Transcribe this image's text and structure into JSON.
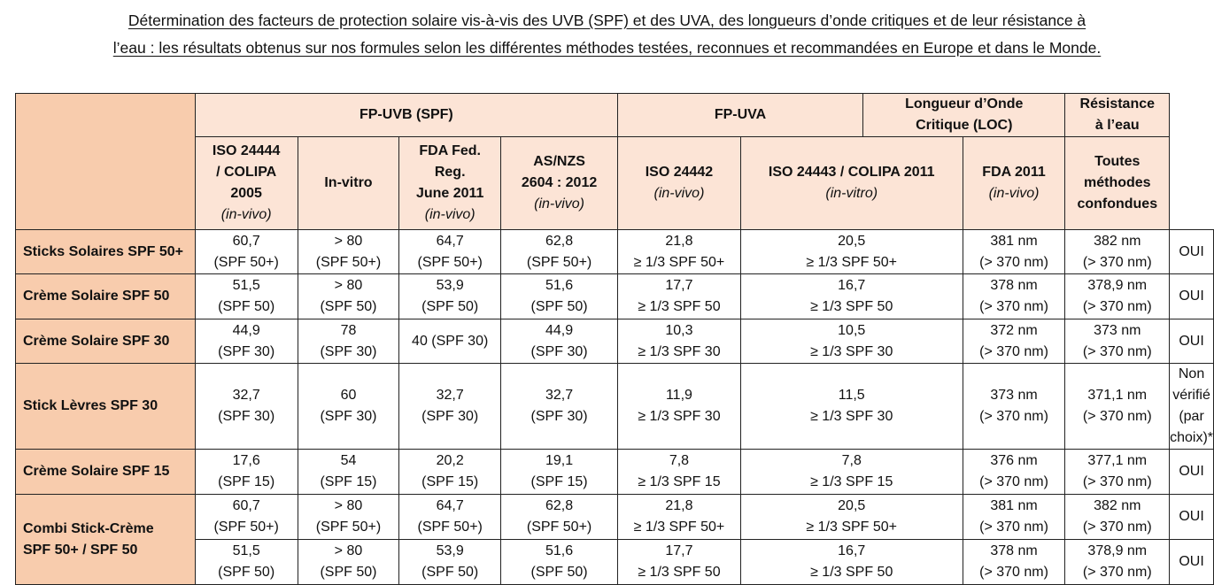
{
  "title": {
    "line1": "Détermination des facteurs de protection solaire vis-à-vis des UVB (SPF) et des UVA, des longueurs d’onde critiques et de leur résistance à",
    "line2": "l’eau : les résultats obtenus sur nos formules selon les différentes méthodes testées, reconnues et recommandées en Europe et dans le Monde."
  },
  "groups": {
    "uvb": "FP-UVB (SPF)",
    "uva": "FP-UVA",
    "loc": [
      "Longueur d’Onde",
      "Critique (LOC)"
    ],
    "water": [
      "Résistance",
      "à l’eau"
    ]
  },
  "methods": {
    "iso24444": {
      "lines": [
        "ISO 24444",
        "/ COLIPA",
        "2005"
      ],
      "note": "(in-vivo)"
    },
    "invitro": {
      "lines": [
        "In-vitro"
      ],
      "note": ""
    },
    "fda": {
      "lines": [
        "FDA Fed.",
        "Reg.",
        "June 2011"
      ],
      "note": "(in-vivo)"
    },
    "asnzs": {
      "lines": [
        "AS/NZS",
        "2604 : 2012"
      ],
      "note": "(in-vivo)"
    },
    "iso24442": {
      "lines": [
        "ISO 24442"
      ],
      "note": "(in-vivo)"
    },
    "iso24443": {
      "lines": [
        "ISO 24443 / COLIPA 2011"
      ],
      "note": "(in-vitro)"
    },
    "fda2011": {
      "lines": [
        "FDA 2011"
      ],
      "note": "(in-vivo)"
    },
    "all": {
      "lines": [
        "Toutes",
        "méthodes",
        "confondues"
      ],
      "note": ""
    }
  },
  "rows": [
    {
      "label": [
        "Sticks Solaires SPF 50+"
      ],
      "cells": [
        [
          "60,7",
          "(SPF 50+)"
        ],
        [
          "> 80",
          "(SPF 50+)"
        ],
        [
          "64,7",
          "(SPF 50+)"
        ],
        [
          "62,8",
          "(SPF 50+)"
        ],
        [
          "21,8",
          "≥ 1/3 SPF 50+"
        ],
        [
          "20,5",
          "≥ 1/3 SPF 50+"
        ],
        [
          "381 nm",
          "(> 370 nm)"
        ],
        [
          "382 nm",
          "(> 370 nm)"
        ],
        [
          "OUI"
        ]
      ]
    },
    {
      "label": [
        "Crème Solaire SPF 50"
      ],
      "cells": [
        [
          "51,5",
          "(SPF 50)"
        ],
        [
          "> 80",
          "(SPF 50)"
        ],
        [
          "53,9",
          "(SPF 50)"
        ],
        [
          "51,6",
          "(SPF 50)"
        ],
        [
          "17,7",
          "≥ 1/3 SPF 50"
        ],
        [
          "16,7",
          "≥ 1/3 SPF 50"
        ],
        [
          "378 nm",
          "(> 370 nm)"
        ],
        [
          "378,9 nm",
          "(> 370 nm)"
        ],
        [
          "OUI"
        ]
      ]
    },
    {
      "label": [
        "Crème Solaire SPF 30"
      ],
      "cells": [
        [
          "44,9",
          "(SPF 30)"
        ],
        [
          "78",
          "(SPF 30)"
        ],
        [
          "40 (SPF 30)"
        ],
        [
          "44,9",
          "(SPF 30)"
        ],
        [
          "10,3",
          "≥ 1/3 SPF 30"
        ],
        [
          "10,5",
          "≥ 1/3 SPF 30"
        ],
        [
          "372 nm",
          "(> 370 nm)"
        ],
        [
          "373 nm",
          "(> 370 nm)"
        ],
        [
          "OUI"
        ]
      ]
    },
    {
      "label": [
        "Stick Lèvres SPF 30"
      ],
      "cells": [
        [
          "32,7",
          "(SPF 30)"
        ],
        [
          "60",
          "(SPF 30)"
        ],
        [
          "32,7",
          "(SPF 30)"
        ],
        [
          "32,7",
          "(SPF 30)"
        ],
        [
          "11,9",
          "≥ 1/3 SPF 30"
        ],
        [
          "11,5",
          "≥ 1/3 SPF 30"
        ],
        [
          "373 nm",
          "(> 370 nm)"
        ],
        [
          "371,1 nm",
          "(> 370 nm)"
        ],
        [
          "Non vérifié",
          "(par choix)*"
        ]
      ]
    },
    {
      "label": [
        "Crème Solaire SPF 15"
      ],
      "cells": [
        [
          "17,6",
          "(SPF 15)"
        ],
        [
          "54",
          "(SPF 15)"
        ],
        [
          "20,2",
          "(SPF 15)"
        ],
        [
          "19,1",
          "(SPF 15)"
        ],
        [
          "7,8",
          "≥ 1/3 SPF 15"
        ],
        [
          "7,8",
          "≥ 1/3 SPF 15"
        ],
        [
          "376 nm",
          "(> 370 nm)"
        ],
        [
          "377,1 nm",
          "(> 370 nm)"
        ],
        [
          "OUI"
        ]
      ]
    },
    {
      "label": [
        "Combi Stick-Crème",
        "SPF 50+ / SPF 50"
      ],
      "cells": [
        [
          "60,7",
          "(SPF 50+)"
        ],
        [
          "> 80",
          "(SPF 50+)"
        ],
        [
          "64,7",
          "(SPF 50+)"
        ],
        [
          "62,8",
          "(SPF 50+)"
        ],
        [
          "21,8",
          "≥ 1/3 SPF 50+"
        ],
        [
          "20,5",
          "≥ 1/3 SPF 50+"
        ],
        [
          "381 nm",
          "(> 370 nm)"
        ],
        [
          "382 nm",
          "(> 370 nm)"
        ],
        [
          "OUI"
        ]
      ]
    },
    {
      "cells": [
        [
          "51,5",
          "(SPF 50)"
        ],
        [
          "> 80",
          "(SPF 50)"
        ],
        [
          "53,9",
          "(SPF 50)"
        ],
        [
          "51,6",
          "(SPF 50)"
        ],
        [
          "17,7",
          "≥ 1/3 SPF 50"
        ],
        [
          "16,7",
          "≥ 1/3 SPF 50"
        ],
        [
          "378 nm",
          "(> 370 nm)"
        ],
        [
          "378,9 nm",
          "(> 370 nm)"
        ],
        [
          "OUI"
        ]
      ]
    }
  ]
}
